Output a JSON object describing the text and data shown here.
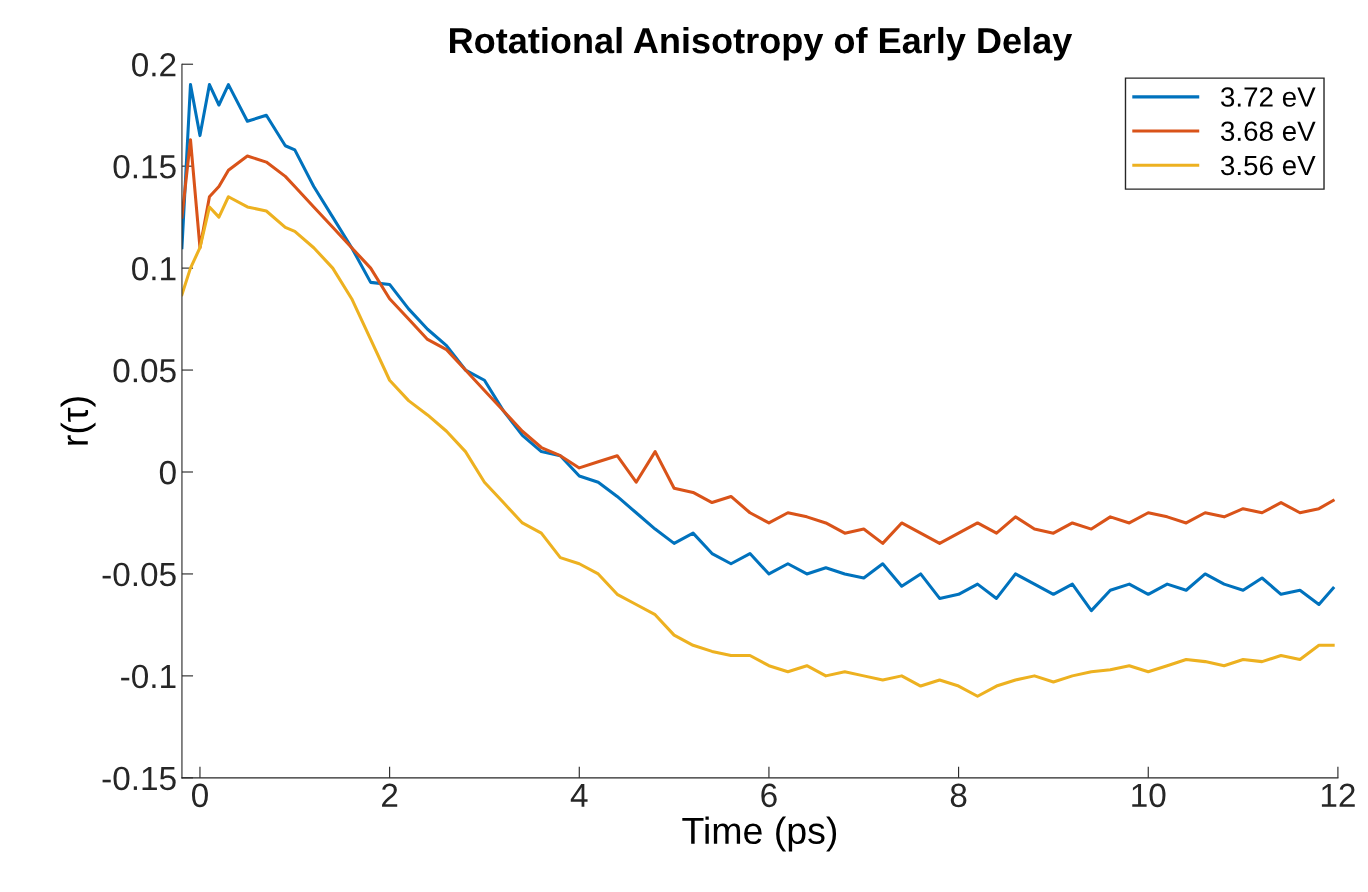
{
  "chart_data": {
    "type": "line",
    "title": "Rotational Anisotropy of Early Delay",
    "xlabel": "Time (ps)",
    "ylabel": "r(τ)",
    "x": [
      -0.19,
      -0.1,
      0,
      0.1,
      0.2,
      0.3,
      0.5,
      0.7,
      0.9,
      1.0,
      1.2,
      1.4,
      1.6,
      1.8,
      2.0,
      2.2,
      2.4,
      2.6,
      2.8,
      3.0,
      3.2,
      3.4,
      3.6,
      3.8,
      4.0,
      4.2,
      4.4,
      4.6,
      4.8,
      5.0,
      5.2,
      5.4,
      5.6,
      5.8,
      6.0,
      6.2,
      6.4,
      6.6,
      6.8,
      7.0,
      7.2,
      7.4,
      7.6,
      7.8,
      8.0,
      8.2,
      8.4,
      8.6,
      8.8,
      9.0,
      9.2,
      9.4,
      9.6,
      9.8,
      10.0,
      10.2,
      10.4,
      10.6,
      10.8,
      11.0,
      11.2,
      11.4,
      11.6,
      11.8,
      11.95
    ],
    "series": [
      {
        "name": "3.72 eV",
        "color": "#0072bd",
        "values": [
          0.11,
          0.19,
          0.165,
          0.19,
          0.18,
          0.19,
          0.172,
          0.175,
          0.16,
          0.158,
          0.14,
          0.125,
          0.11,
          0.093,
          0.092,
          0.08,
          0.07,
          0.062,
          0.05,
          0.045,
          0.03,
          0.018,
          0.01,
          0.008,
          -0.002,
          -0.005,
          -0.012,
          -0.02,
          -0.028,
          -0.035,
          -0.03,
          -0.04,
          -0.045,
          -0.04,
          -0.05,
          -0.045,
          -0.05,
          -0.047,
          -0.05,
          -0.052,
          -0.045,
          -0.056,
          -0.05,
          -0.062,
          -0.06,
          -0.055,
          -0.062,
          -0.05,
          -0.055,
          -0.06,
          -0.055,
          -0.068,
          -0.058,
          -0.055,
          -0.06,
          -0.055,
          -0.058,
          -0.05,
          -0.055,
          -0.058,
          -0.052,
          -0.06,
          -0.058,
          -0.065,
          -0.057
        ]
      },
      {
        "name": "3.68 eV",
        "color": "#d95319",
        "values": [
          0.125,
          0.163,
          0.11,
          0.135,
          0.14,
          0.148,
          0.155,
          0.152,
          0.145,
          0.14,
          0.13,
          0.12,
          0.11,
          0.1,
          0.085,
          0.075,
          0.065,
          0.06,
          0.05,
          0.04,
          0.03,
          0.02,
          0.012,
          0.008,
          0.002,
          0.005,
          0.008,
          -0.005,
          0.01,
          -0.008,
          -0.01,
          -0.015,
          -0.012,
          -0.02,
          -0.025,
          -0.02,
          -0.022,
          -0.025,
          -0.03,
          -0.028,
          -0.035,
          -0.025,
          -0.03,
          -0.035,
          -0.03,
          -0.025,
          -0.03,
          -0.022,
          -0.028,
          -0.03,
          -0.025,
          -0.028,
          -0.022,
          -0.025,
          -0.02,
          -0.022,
          -0.025,
          -0.02,
          -0.022,
          -0.018,
          -0.02,
          -0.015,
          -0.02,
          -0.018,
          -0.014
        ]
      },
      {
        "name": "3.56 eV",
        "color": "#edb120",
        "values": [
          0.087,
          0.1,
          0.11,
          0.13,
          0.125,
          0.135,
          0.13,
          0.128,
          0.12,
          0.118,
          0.11,
          0.1,
          0.085,
          0.065,
          0.045,
          0.035,
          0.028,
          0.02,
          0.01,
          -0.005,
          -0.015,
          -0.025,
          -0.03,
          -0.042,
          -0.045,
          -0.05,
          -0.06,
          -0.065,
          -0.07,
          -0.08,
          -0.085,
          -0.088,
          -0.09,
          -0.09,
          -0.095,
          -0.098,
          -0.095,
          -0.1,
          -0.098,
          -0.1,
          -0.102,
          -0.1,
          -0.105,
          -0.102,
          -0.105,
          -0.11,
          -0.105,
          -0.102,
          -0.1,
          -0.103,
          -0.1,
          -0.098,
          -0.097,
          -0.095,
          -0.098,
          -0.095,
          -0.092,
          -0.093,
          -0.095,
          -0.092,
          -0.093,
          -0.09,
          -0.092,
          -0.085,
          -0.085
        ]
      }
    ],
    "xlim": [
      -0.19,
      12
    ],
    "xticks": [
      0,
      2,
      4,
      6,
      8,
      10,
      12
    ],
    "ylim": [
      -0.15,
      0.2
    ],
    "yticks": [
      -0.15,
      -0.1,
      -0.05,
      0,
      0.05,
      0.1,
      0.15,
      0.2
    ],
    "grid": false,
    "legend": "top right",
    "line_style": "solid",
    "marker": "none"
  }
}
